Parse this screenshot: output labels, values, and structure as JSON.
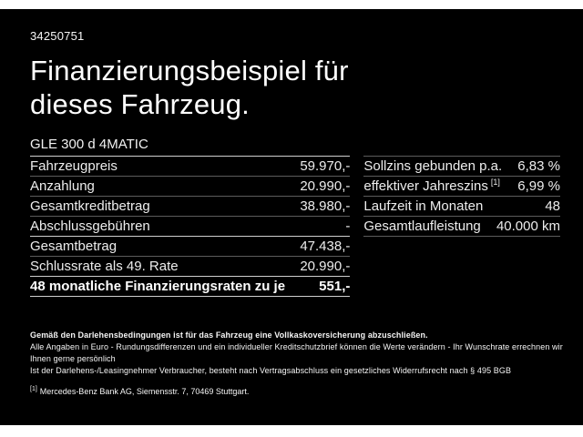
{
  "page": {
    "ref_id": "34250751",
    "title": "Finanzierungsbeispiel für dieses Fahrzeug.",
    "model": "GLE 300 d 4MATIC"
  },
  "left_table": {
    "rows": [
      {
        "label": "Fahrzeugpreis",
        "value": "59.970,-"
      },
      {
        "label": "Anzahlung",
        "value": "20.990,-"
      },
      {
        "label": "Gesamtkreditbetrag",
        "value": "38.980,-"
      },
      {
        "label": "Abschlussgebühren",
        "value": "-"
      },
      {
        "label": "Gesamtbetrag",
        "value": "47.438,-",
        "section_start": true
      },
      {
        "label": "Schlussrate als 49. Rate",
        "value": "20.990,-"
      },
      {
        "label": "48 monatliche Finanzierungsraten zu je",
        "value": "551,-",
        "bold": true,
        "section_start": true
      }
    ]
  },
  "right_table": {
    "rows": [
      {
        "label": "Sollzins gebunden p.a.",
        "value": "6,83 %"
      },
      {
        "label": "effektiver Jahreszins",
        "sup": "[1]",
        "value": "6,99 %"
      },
      {
        "label": "Laufzeit in Monaten",
        "value": "48"
      },
      {
        "label": "Gesamtlaufleistung",
        "value": "40.000 km"
      }
    ]
  },
  "footer": {
    "line1": "Gemäß den Darlehensbedingungen ist für das Fahrzeug eine Vollkaskoversicherung abzuschließen.",
    "line2": "Alle Angaben in Euro - Rundungsdifferenzen und ein individueller Kreditschutzbrief können die Werte verändern - Ihr Wunschrate errechnen wir Ihnen gerne persönlich",
    "line3": "Ist der Darlehens-/Leasingnehmer Verbraucher, besteht nach Vertragsabschluss ein gesetzliches Widerrufsrecht nach § 495 BGB",
    "footnote_marker": "[1]",
    "footnote": "Mercedes-Benz Bank AG, Siemensstr. 7, 70469 Stuttgart."
  },
  "colors": {
    "background": "#000000",
    "page_margin": "#ffffff",
    "text": "#f2f2f2",
    "divider": "#5c5c5c",
    "divider_bright": "#cfcfcf"
  }
}
